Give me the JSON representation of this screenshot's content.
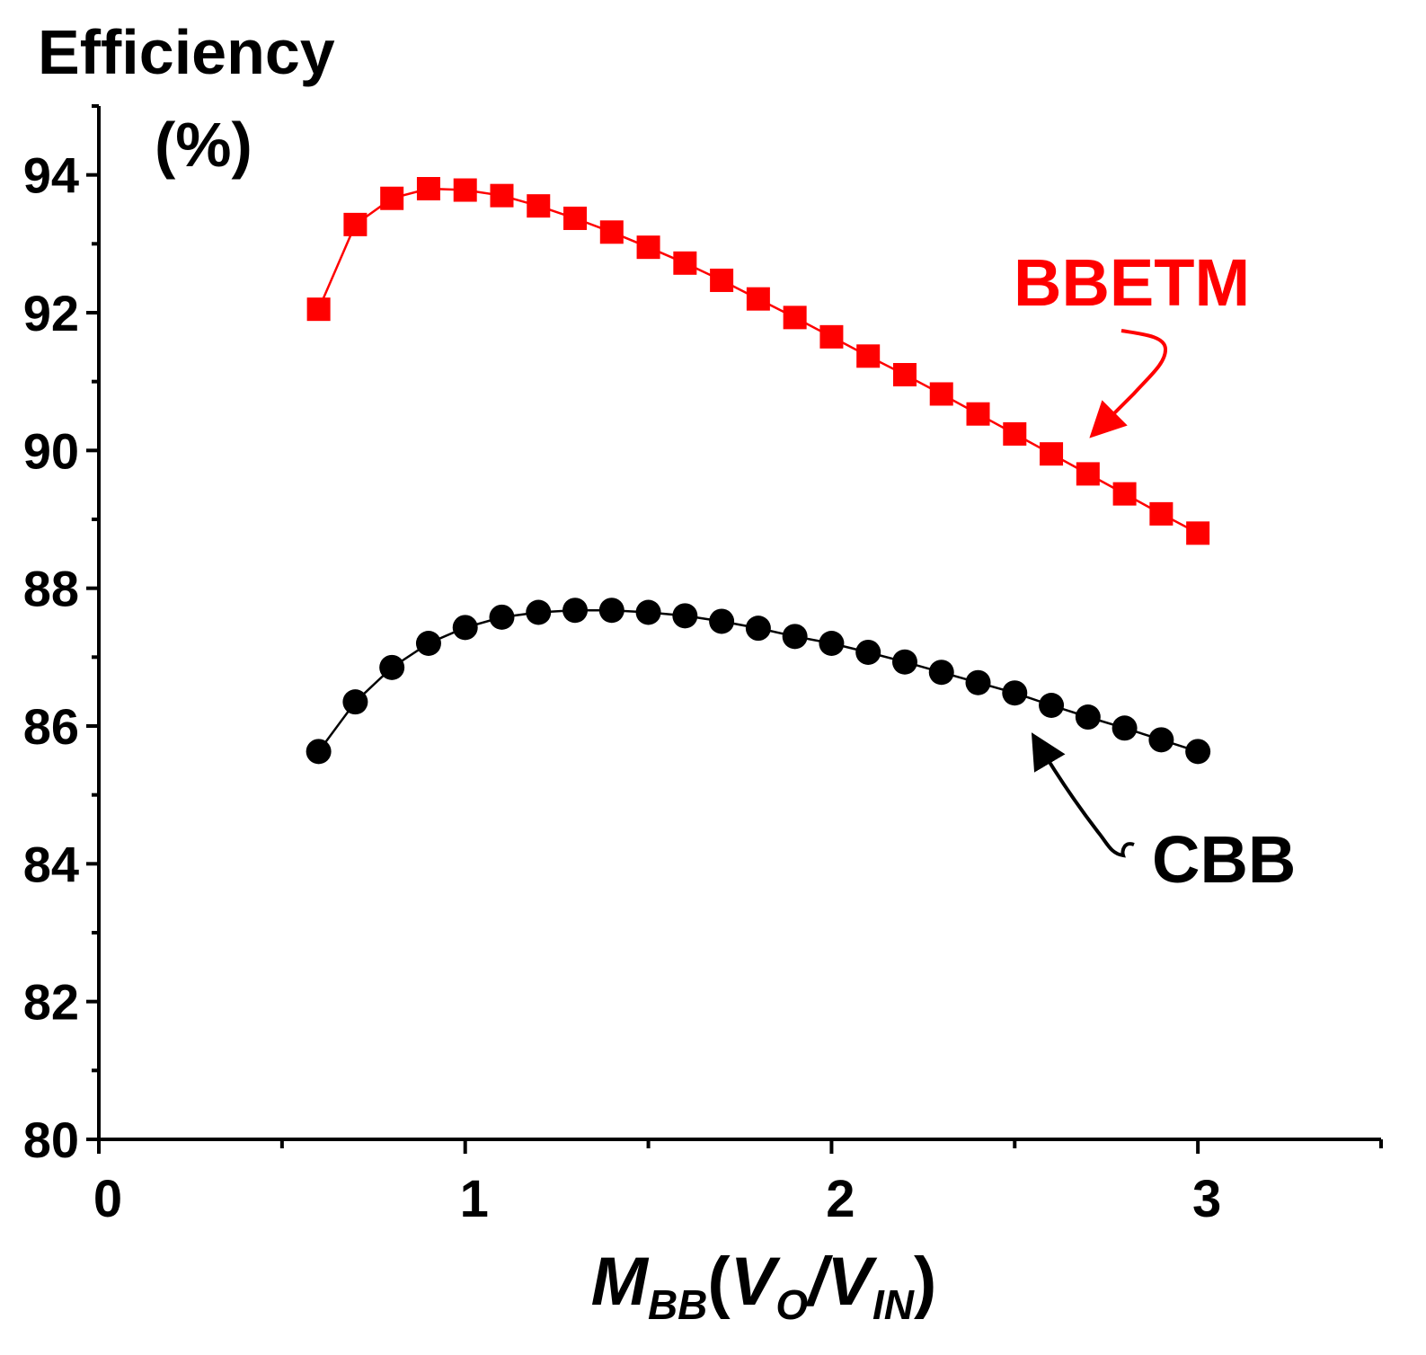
{
  "chart_data": {
    "type": "line",
    "title": "",
    "ylabel_line1": "Efficiency",
    "ylabel_line2": "(%)",
    "xlabel": {
      "main": "M",
      "main_sub": "BB",
      "open": "(",
      "v1": "V",
      "v1_sub": "O",
      "slash": "/",
      "v2": "V",
      "v2_sub": "IN",
      "close": ")"
    },
    "xlim": [
      0,
      3.5
    ],
    "ylim": [
      80,
      95
    ],
    "x_ticks": [
      0,
      1,
      2,
      3
    ],
    "x_tick_labels": [
      "0",
      "1",
      "2",
      "3"
    ],
    "y_ticks": [
      80,
      82,
      84,
      86,
      88,
      90,
      92,
      94
    ],
    "y_tick_labels": [
      "80",
      "82",
      "84",
      "86",
      "88",
      "90",
      "92",
      "94"
    ],
    "grid": false,
    "series": [
      {
        "name": "BBETM",
        "color": "#ff0000",
        "marker": "square",
        "x": [
          0.6,
          0.7,
          0.8,
          0.9,
          1.0,
          1.1,
          1.2,
          1.3,
          1.4,
          1.5,
          1.6,
          1.7,
          1.8,
          1.9,
          2.0,
          2.1,
          2.2,
          2.3,
          2.4,
          2.5,
          2.6,
          2.7,
          2.8,
          2.9,
          3.0
        ],
        "values": [
          92.05,
          93.28,
          93.66,
          93.8,
          93.78,
          93.7,
          93.55,
          93.37,
          93.17,
          92.95,
          92.72,
          92.47,
          92.2,
          91.93,
          91.65,
          91.37,
          91.1,
          90.82,
          90.53,
          90.24,
          89.95,
          89.66,
          89.37,
          89.08,
          88.8
        ]
      },
      {
        "name": "CBB",
        "color": "#000000",
        "marker": "circle",
        "x": [
          0.6,
          0.7,
          0.8,
          0.9,
          1.0,
          1.1,
          1.2,
          1.3,
          1.4,
          1.5,
          1.6,
          1.7,
          1.8,
          1.9,
          2.0,
          2.1,
          2.2,
          2.3,
          2.4,
          2.5,
          2.6,
          2.7,
          2.8,
          2.9,
          3.0
        ],
        "values": [
          85.63,
          86.35,
          86.85,
          87.2,
          87.43,
          87.58,
          87.65,
          87.68,
          87.68,
          87.65,
          87.6,
          87.52,
          87.42,
          87.3,
          87.2,
          87.07,
          86.93,
          86.78,
          86.63,
          86.48,
          86.3,
          86.13,
          85.97,
          85.8,
          85.63
        ]
      }
    ],
    "annotations": [
      {
        "text": "BBETM",
        "color": "#ff0000"
      },
      {
        "text": "CBB",
        "color": "#000000"
      }
    ]
  }
}
